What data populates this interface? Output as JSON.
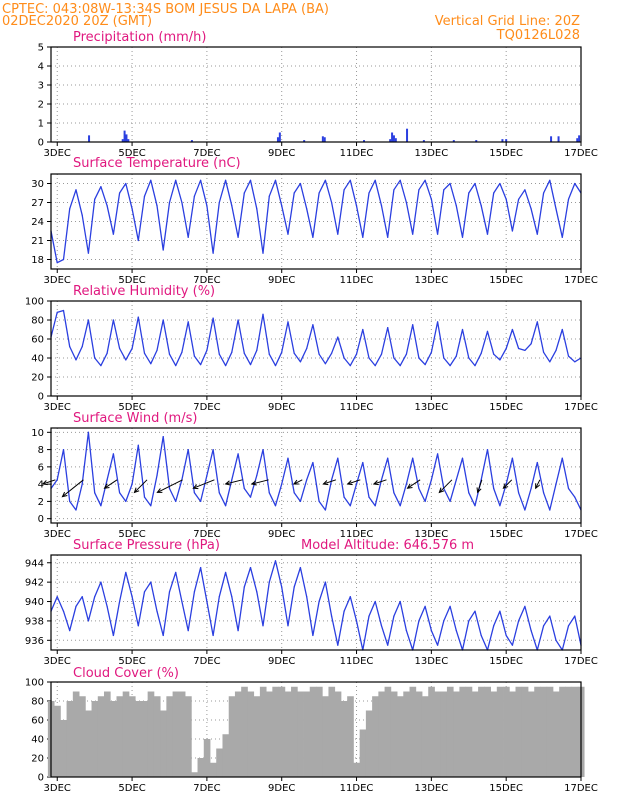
{
  "header": {
    "line1": "CPTEC:   043:08W-13:34S   BOM JESUS DA LAPA (BA)",
    "line2_left": "02DEC2020 20Z (GMT)",
    "line2_right": "Vertical Grid Line: 20Z",
    "line3_right": "TQ0126L028"
  },
  "colors": {
    "header_text": "#ff8c1a",
    "panel_title": "#e0187f",
    "series_line": "#2b3fe0",
    "wind_arrow": "#000000",
    "cloud_fill": "#a9a9a9",
    "grid": "#999999",
    "axis": "#000000"
  },
  "x_axis": {
    "start_hour_offset": 0,
    "range_days": [
      2.833,
      17.0
    ],
    "tick_labels": [
      "3DEC",
      "5DEC",
      "7DEC",
      "9DEC",
      "11DEC",
      "13DEC",
      "15DEC",
      "17DEC"
    ],
    "tick_days": [
      3,
      5,
      7,
      9,
      11,
      13,
      15,
      17
    ]
  },
  "chart_data": [
    {
      "type": "bar",
      "title": "Precipitation (mm/h)",
      "ylim": [
        0,
        5
      ],
      "yticks": [
        0,
        1,
        2,
        3,
        4,
        5
      ],
      "grid": true,
      "x": [
        3.85,
        4.75,
        4.8,
        4.85,
        4.9,
        6.6,
        8.9,
        8.95,
        9.6,
        10.1,
        10.15,
        11.2,
        11.9,
        11.95,
        12.0,
        12.05,
        12.35,
        12.8,
        13.6,
        14.2,
        14.9,
        15.0,
        16.2,
        16.4,
        16.9,
        16.95
      ],
      "values": [
        0.35,
        0.15,
        0.6,
        0.4,
        0.15,
        0.1,
        0.25,
        0.5,
        0.1,
        0.3,
        0.25,
        0.1,
        0.15,
        0.5,
        0.35,
        0.2,
        0.7,
        0.1,
        0.1,
        0.1,
        0.15,
        0.15,
        0.3,
        0.3,
        0.2,
        0.35
      ]
    },
    {
      "type": "line",
      "title": "Surface Temperature (nC)",
      "ylim": [
        16.5,
        31.5
      ],
      "yticks": [
        18,
        21,
        24,
        27,
        30
      ],
      "grid": true,
      "x": [
        2.833,
        3.0,
        3.167,
        3.333,
        3.5,
        3.667,
        3.833,
        4.0,
        4.167,
        4.333,
        4.5,
        4.667,
        4.833,
        5.0,
        5.167,
        5.333,
        5.5,
        5.667,
        5.833,
        6.0,
        6.167,
        6.333,
        6.5,
        6.667,
        6.833,
        7.0,
        7.167,
        7.333,
        7.5,
        7.667,
        7.833,
        8.0,
        8.167,
        8.333,
        8.5,
        8.667,
        8.833,
        9.0,
        9.167,
        9.333,
        9.5,
        9.667,
        9.833,
        10.0,
        10.167,
        10.333,
        10.5,
        10.667,
        10.833,
        11.0,
        11.167,
        11.333,
        11.5,
        11.667,
        11.833,
        12.0,
        12.167,
        12.333,
        12.5,
        12.667,
        12.833,
        13.0,
        13.167,
        13.333,
        13.5,
        13.667,
        13.833,
        14.0,
        14.167,
        14.333,
        14.5,
        14.667,
        14.833,
        15.0,
        15.167,
        15.333,
        15.5,
        15.667,
        15.833,
        16.0,
        16.167,
        16.333,
        16.5,
        16.667,
        16.833,
        17.0
      ],
      "values": [
        22.5,
        17.5,
        18.0,
        26.0,
        29.0,
        25.0,
        19.0,
        27.5,
        29.5,
        26.5,
        22.0,
        28.5,
        30.0,
        26.0,
        21.0,
        28.0,
        30.5,
        26.5,
        19.5,
        27.0,
        30.5,
        27.0,
        21.5,
        28.0,
        30.5,
        26.5,
        19.0,
        27.0,
        30.5,
        26.5,
        21.5,
        28.5,
        30.5,
        26.0,
        19.0,
        28.0,
        30.5,
        26.5,
        22.0,
        28.5,
        30.0,
        26.0,
        21.5,
        28.5,
        30.5,
        27.0,
        22.0,
        29.0,
        30.5,
        26.5,
        21.5,
        28.5,
        30.5,
        26.5,
        21.5,
        29.0,
        30.5,
        27.0,
        22.0,
        29.0,
        30.5,
        27.5,
        22.0,
        29.0,
        30.0,
        26.5,
        21.5,
        28.5,
        30.0,
        26.5,
        22.0,
        28.5,
        30.0,
        27.5,
        22.5,
        27.5,
        29.0,
        26.0,
        22.0,
        28.5,
        30.5,
        26.0,
        21.5,
        27.5,
        30.0,
        28.5
      ]
    },
    {
      "type": "line",
      "title": "Relative Humidity (%)",
      "ylim": [
        0,
        100
      ],
      "yticks": [
        0,
        20,
        40,
        60,
        80,
        100
      ],
      "grid": true,
      "x": [
        2.833,
        3.0,
        3.167,
        3.333,
        3.5,
        3.667,
        3.833,
        4.0,
        4.167,
        4.333,
        4.5,
        4.667,
        4.833,
        5.0,
        5.167,
        5.333,
        5.5,
        5.667,
        5.833,
        6.0,
        6.167,
        6.333,
        6.5,
        6.667,
        6.833,
        7.0,
        7.167,
        7.333,
        7.5,
        7.667,
        7.833,
        8.0,
        8.167,
        8.333,
        8.5,
        8.667,
        8.833,
        9.0,
        9.167,
        9.333,
        9.5,
        9.667,
        9.833,
        10.0,
        10.167,
        10.333,
        10.5,
        10.667,
        10.833,
        11.0,
        11.167,
        11.333,
        11.5,
        11.667,
        11.833,
        12.0,
        12.167,
        12.333,
        12.5,
        12.667,
        12.833,
        13.0,
        13.167,
        13.333,
        13.5,
        13.667,
        13.833,
        14.0,
        14.167,
        14.333,
        14.5,
        14.667,
        14.833,
        15.0,
        15.167,
        15.333,
        15.5,
        15.667,
        15.833,
        16.0,
        16.167,
        16.333,
        16.5,
        16.667,
        16.833,
        17.0
      ],
      "values": [
        62,
        88,
        90,
        52,
        38,
        52,
        80,
        40,
        32,
        45,
        80,
        50,
        38,
        50,
        83,
        45,
        34,
        48,
        80,
        44,
        32,
        46,
        78,
        42,
        33,
        48,
        82,
        44,
        32,
        46,
        80,
        45,
        33,
        48,
        86,
        44,
        32,
        46,
        78,
        45,
        36,
        50,
        75,
        44,
        34,
        45,
        62,
        40,
        32,
        44,
        70,
        40,
        32,
        44,
        72,
        40,
        32,
        44,
        75,
        40,
        33,
        46,
        78,
        40,
        32,
        42,
        70,
        40,
        32,
        45,
        68,
        44,
        38,
        50,
        70,
        50,
        48,
        55,
        78,
        46,
        36,
        48,
        70,
        42,
        36,
        40
      ]
    },
    {
      "type": "line",
      "title": "Surface Wind (m/s)",
      "ylim": [
        -0.5,
        10.5
      ],
      "yticks": [
        0,
        2,
        4,
        6,
        8,
        10
      ],
      "grid": true,
      "x": [
        2.833,
        3.0,
        3.167,
        3.333,
        3.5,
        3.667,
        3.833,
        4.0,
        4.167,
        4.333,
        4.5,
        4.667,
        4.833,
        5.0,
        5.167,
        5.333,
        5.5,
        5.667,
        5.833,
        6.0,
        6.167,
        6.333,
        6.5,
        6.667,
        6.833,
        7.0,
        7.167,
        7.333,
        7.5,
        7.667,
        7.833,
        8.0,
        8.167,
        8.333,
        8.5,
        8.667,
        8.833,
        9.0,
        9.167,
        9.333,
        9.5,
        9.667,
        9.833,
        10.0,
        10.167,
        10.333,
        10.5,
        10.667,
        10.833,
        11.0,
        11.167,
        11.333,
        11.5,
        11.667,
        11.833,
        12.0,
        12.167,
        12.333,
        12.5,
        12.667,
        12.833,
        13.0,
        13.167,
        13.333,
        13.5,
        13.667,
        13.833,
        14.0,
        14.167,
        14.333,
        14.5,
        14.667,
        14.833,
        15.0,
        15.167,
        15.333,
        15.5,
        15.667,
        15.833,
        16.0,
        16.167,
        16.333,
        16.5,
        16.667,
        16.833,
        17.0
      ],
      "values": [
        3.5,
        4.5,
        8.0,
        2.0,
        1.0,
        4.0,
        10.0,
        3.0,
        1.5,
        4.5,
        7.5,
        3.0,
        2.0,
        4.0,
        8.5,
        2.5,
        1.5,
        5.0,
        9.5,
        3.5,
        2.0,
        4.5,
        8.0,
        3.0,
        2.0,
        5.0,
        8.0,
        3.0,
        1.5,
        4.5,
        7.5,
        3.5,
        2.5,
        5.0,
        8.0,
        3.0,
        1.5,
        4.0,
        7.0,
        3.0,
        2.0,
        4.5,
        6.5,
        2.0,
        1.0,
        4.5,
        7.0,
        2.5,
        1.5,
        4.0,
        6.5,
        2.5,
        1.5,
        4.5,
        7.0,
        3.0,
        1.5,
        4.0,
        7.0,
        3.5,
        2.0,
        4.5,
        7.5,
        3.5,
        2.0,
        4.5,
        7.0,
        3.0,
        1.5,
        4.5,
        8.0,
        3.5,
        1.5,
        4.0,
        7.0,
        3.0,
        1.0,
        3.5,
        6.5,
        3.0,
        1.0,
        4.0,
        7.0,
        3.5,
        2.5,
        1.0
      ],
      "vectors": {
        "x": [
          2.95,
          3.7,
          4.6,
          5.4,
          6.35,
          7.2,
          7.95,
          8.65,
          9.55,
          10.45,
          11.1,
          11.8,
          12.7,
          13.55,
          14.35,
          15.15,
          15.9
        ],
        "u": [
          -3,
          -5,
          -3,
          -3,
          -6,
          -5,
          -4,
          -4,
          -2,
          -3,
          -3,
          -3,
          -3,
          -3,
          -1,
          -2,
          -1
        ],
        "v": [
          -1,
          -4,
          -2,
          -3,
          -3,
          -2,
          -1,
          -1,
          -1,
          -1,
          -1,
          -1,
          -2,
          -3,
          -3,
          -2,
          -2
        ]
      }
    },
    {
      "type": "line",
      "title": "Surface Pressure (hPa)",
      "annotation": "Model Altitude: 646.576 m",
      "ylim": [
        935.0,
        944.8
      ],
      "yticks": [
        936,
        938,
        940,
        942,
        944
      ],
      "grid": true,
      "x": [
        2.833,
        3.0,
        3.167,
        3.333,
        3.5,
        3.667,
        3.833,
        4.0,
        4.167,
        4.333,
        4.5,
        4.667,
        4.833,
        5.0,
        5.167,
        5.333,
        5.5,
        5.667,
        5.833,
        6.0,
        6.167,
        6.333,
        6.5,
        6.667,
        6.833,
        7.0,
        7.167,
        7.333,
        7.5,
        7.667,
        7.833,
        8.0,
        8.167,
        8.333,
        8.5,
        8.667,
        8.833,
        9.0,
        9.167,
        9.333,
        9.5,
        9.667,
        9.833,
        10.0,
        10.167,
        10.333,
        10.5,
        10.667,
        10.833,
        11.0,
        11.167,
        11.333,
        11.5,
        11.667,
        11.833,
        12.0,
        12.167,
        12.333,
        12.5,
        12.667,
        12.833,
        13.0,
        13.167,
        13.333,
        13.5,
        13.667,
        13.833,
        14.0,
        14.167,
        14.333,
        14.5,
        14.667,
        14.833,
        15.0,
        15.167,
        15.333,
        15.5,
        15.667,
        15.833,
        16.0,
        16.167,
        16.333,
        16.5,
        16.667,
        16.833,
        17.0
      ],
      "values": [
        939.0,
        940.5,
        939.0,
        937.0,
        939.5,
        940.5,
        938.0,
        940.5,
        942.0,
        939.5,
        936.5,
        940.0,
        943.0,
        940.5,
        937.5,
        941.0,
        942.0,
        939.0,
        936.5,
        941.0,
        943.0,
        940.0,
        937.0,
        941.0,
        943.5,
        940.0,
        936.5,
        940.5,
        943.0,
        940.5,
        937.0,
        941.5,
        943.5,
        941.0,
        937.5,
        942.0,
        944.2,
        941.5,
        937.5,
        941.5,
        943.5,
        940.5,
        936.5,
        940.0,
        942.0,
        938.5,
        935.5,
        939.0,
        940.5,
        938.0,
        935.0,
        938.5,
        940.0,
        937.5,
        935.5,
        938.5,
        940.0,
        937.0,
        935.0,
        938.0,
        939.5,
        937.0,
        935.5,
        938.0,
        939.5,
        937.0,
        935.0,
        938.0,
        939.0,
        936.5,
        935.0,
        937.5,
        939.0,
        936.5,
        935.5,
        938.0,
        939.5,
        937.0,
        935.0,
        937.5,
        938.5,
        936.0,
        935.0,
        937.5,
        938.5,
        935.5
      ]
    },
    {
      "type": "area",
      "title": "Cloud Cover (%)",
      "ylim": [
        0,
        100
      ],
      "yticks": [
        0,
        20,
        40,
        60,
        80,
        100
      ],
      "grid": true,
      "x": [
        2.833,
        3.0,
        3.167,
        3.333,
        3.5,
        3.667,
        3.833,
        4.0,
        4.167,
        4.333,
        4.5,
        4.667,
        4.833,
        5.0,
        5.167,
        5.333,
        5.5,
        5.667,
        5.833,
        6.0,
        6.167,
        6.333,
        6.5,
        6.667,
        6.833,
        7.0,
        7.167,
        7.333,
        7.5,
        7.667,
        7.833,
        8.0,
        8.167,
        8.333,
        8.5,
        8.667,
        8.833,
        9.0,
        9.167,
        9.333,
        9.5,
        9.667,
        9.833,
        10.0,
        10.167,
        10.333,
        10.5,
        10.667,
        10.833,
        11.0,
        11.167,
        11.333,
        11.5,
        11.667,
        11.833,
        12.0,
        12.167,
        12.333,
        12.5,
        12.667,
        12.833,
        13.0,
        13.167,
        13.333,
        13.5,
        13.667,
        13.833,
        14.0,
        14.167,
        14.333,
        14.5,
        14.667,
        14.833,
        15.0,
        15.167,
        15.333,
        15.5,
        15.667,
        15.833,
        16.0,
        16.167,
        16.333,
        16.5,
        16.667,
        16.833,
        17.0
      ],
      "values": [
        80,
        75,
        60,
        80,
        90,
        85,
        70,
        80,
        85,
        90,
        80,
        85,
        90,
        85,
        80,
        80,
        90,
        85,
        70,
        85,
        90,
        90,
        85,
        5,
        20,
        40,
        15,
        30,
        45,
        85,
        90,
        95,
        90,
        85,
        95,
        90,
        95,
        95,
        90,
        95,
        90,
        90,
        95,
        95,
        85,
        95,
        90,
        80,
        85,
        15,
        50,
        70,
        85,
        90,
        95,
        90,
        85,
        90,
        95,
        90,
        85,
        95,
        90,
        90,
        95,
        90,
        95,
        95,
        90,
        95,
        95,
        90,
        95,
        95,
        90,
        95,
        95,
        90,
        95,
        95,
        95,
        90,
        95,
        95,
        95,
        95
      ]
    }
  ]
}
